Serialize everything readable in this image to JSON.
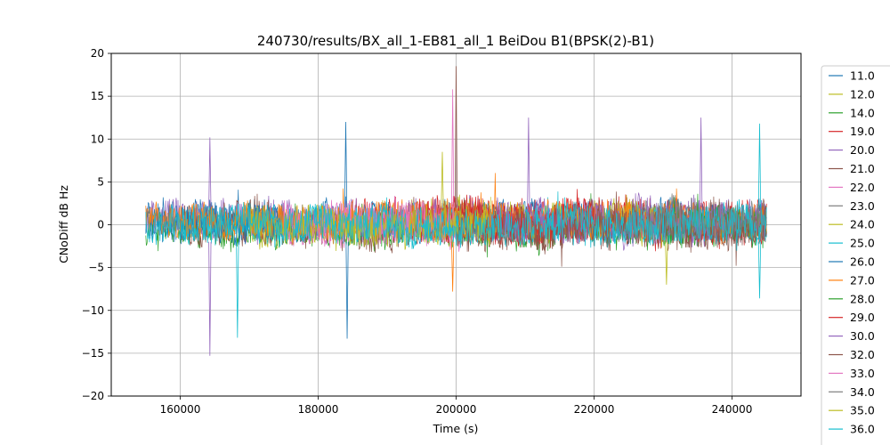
{
  "chart_data": {
    "type": "line",
    "title": "240730/results/BX_all_1-EB81_all_1 BeiDou B1(BPSK(2)-B1)",
    "xlabel": "Time (s)",
    "ylabel": "CNoDiff dB Hz",
    "xlim": [
      150000,
      250000
    ],
    "ylim": [
      -20,
      20
    ],
    "x_ticks": [
      160000,
      180000,
      200000,
      220000,
      240000
    ],
    "x_tick_labels": [
      "160000",
      "180000",
      "200000",
      "220000",
      "240000"
    ],
    "y_ticks": [
      -20,
      -15,
      -10,
      -5,
      0,
      5,
      10,
      15,
      20
    ],
    "y_tick_labels": [
      "−20",
      "−15",
      "−10",
      "−5",
      "0",
      "5",
      "10",
      "15",
      "20"
    ],
    "grid": true,
    "legend_placement": "outside-right",
    "series": [
      {
        "name": "11.0",
        "color": "#1f77b4",
        "x_range": [
          155000,
          245000
        ],
        "center": 0.5,
        "amplitude": 2.0
      },
      {
        "name": "12.0",
        "color": "#bcbd22",
        "x_range": [
          170000,
          205000
        ],
        "center": 0.0,
        "amplitude": 2.2
      },
      {
        "name": "14.0",
        "color": "#2ca02c",
        "x_range": [
          155000,
          245000
        ],
        "center": -0.5,
        "amplitude": 2.0
      },
      {
        "name": "19.0",
        "color": "#d62728",
        "x_range": [
          185000,
          245000
        ],
        "center": 0.5,
        "amplitude": 2.5
      },
      {
        "name": "20.0",
        "color": "#9467bd",
        "x_range": [
          155000,
          245000
        ],
        "center": 0.5,
        "amplitude": 2.2
      },
      {
        "name": "21.0",
        "color": "#8c564b",
        "x_range": [
          160000,
          245000
        ],
        "center": 0.0,
        "amplitude": 2.5
      },
      {
        "name": "22.0",
        "color": "#e377c2",
        "x_range": [
          175000,
          205000
        ],
        "center": 0.0,
        "amplitude": 2.2
      },
      {
        "name": "23.0",
        "color": "#7f7f7f",
        "x_range": [
          225000,
          245000
        ],
        "center": 0.5,
        "amplitude": 2.0
      },
      {
        "name": "24.0",
        "color": "#bcbd22",
        "x_range": [
          195000,
          230000
        ],
        "center": 0.5,
        "amplitude": 2.0
      },
      {
        "name": "25.0",
        "color": "#17becf",
        "x_range": [
          160000,
          245000
        ],
        "center": 0.0,
        "amplitude": 2.0
      },
      {
        "name": "26.0",
        "color": "#1f77b4",
        "x_range": [
          155000,
          175000
        ],
        "center": 0.5,
        "amplitude": 2.2
      },
      {
        "name": "27.0",
        "color": "#ff7f0e",
        "x_range": [
          155000,
          245000
        ],
        "center": 0.5,
        "amplitude": 2.0
      },
      {
        "name": "28.0",
        "color": "#2ca02c",
        "x_range": [
          230000,
          245000
        ],
        "center": 0.0,
        "amplitude": 2.0
      },
      {
        "name": "29.0",
        "color": "#d62728",
        "x_range": [
          195000,
          220000
        ],
        "center": 0.5,
        "amplitude": 2.5
      },
      {
        "name": "30.0",
        "color": "#9467bd",
        "x_range": [
          205000,
          245000
        ],
        "center": 0.0,
        "amplitude": 2.2
      },
      {
        "name": "32.0",
        "color": "#8c564b",
        "x_range": [
          200000,
          245000
        ],
        "center": -0.5,
        "amplitude": 2.2
      },
      {
        "name": "33.0",
        "color": "#e377c2",
        "x_range": [
          175000,
          200000
        ],
        "center": 0.5,
        "amplitude": 2.2
      },
      {
        "name": "34.0",
        "color": "#7f7f7f",
        "x_range": [
          225000,
          245000
        ],
        "center": 0.5,
        "amplitude": 2.0
      },
      {
        "name": "35.0",
        "color": "#bcbd22",
        "x_range": [
          170000,
          205000
        ],
        "center": 0.0,
        "amplitude": 2.0
      },
      {
        "name": "36.0",
        "color": "#17becf",
        "x_range": [
          155000,
          245000
        ],
        "center": 0.0,
        "amplitude": 2.0
      }
    ],
    "spikes": [
      {
        "x": 200000,
        "y": 18.5,
        "color": "#8c564b"
      },
      {
        "x": 199500,
        "y": 15.8,
        "color": "#e377c2"
      },
      {
        "x": 184000,
        "y": 12.0,
        "color": "#1f77b4"
      },
      {
        "x": 210500,
        "y": 12.5,
        "color": "#9467bd"
      },
      {
        "x": 235500,
        "y": 12.5,
        "color": "#9467bd"
      },
      {
        "x": 244000,
        "y": 11.8,
        "color": "#17becf"
      },
      {
        "x": 164300,
        "y": 10.2,
        "color": "#9467bd"
      },
      {
        "x": 164300,
        "y": -15.3,
        "color": "#9467bd"
      },
      {
        "x": 168300,
        "y": -13.2,
        "color": "#17becf"
      },
      {
        "x": 184200,
        "y": -13.3,
        "color": "#1f77b4"
      },
      {
        "x": 244000,
        "y": -8.6,
        "color": "#17becf"
      },
      {
        "x": 230500,
        "y": -7.0,
        "color": "#bcbd22"
      },
      {
        "x": 199500,
        "y": -7.8,
        "color": "#ff7f0e"
      },
      {
        "x": 198000,
        "y": 8.5,
        "color": "#bcbd22"
      }
    ]
  }
}
